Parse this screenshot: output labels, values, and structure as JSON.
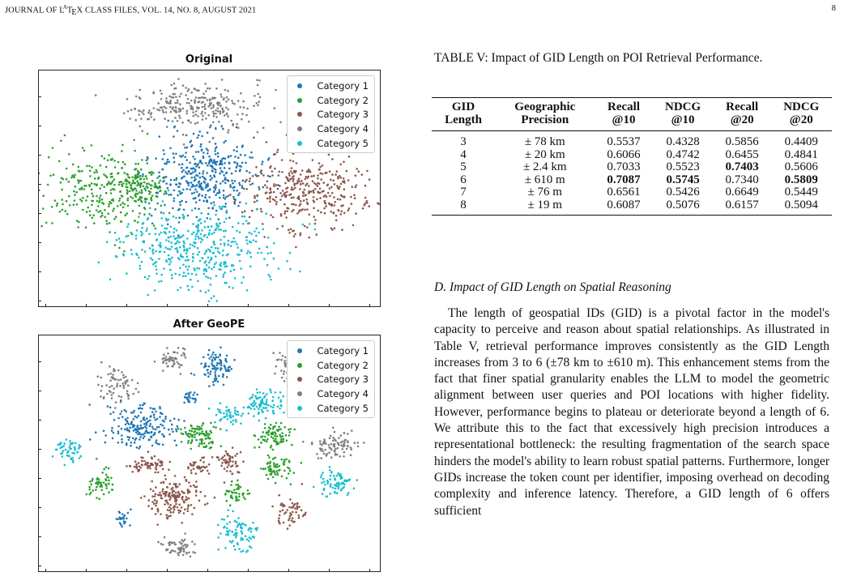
{
  "header": {
    "journal": "JOURNAL OF LaTeX CLASS FILES, VOL. 14, NO. 8, AUGUST 2021",
    "page": "8"
  },
  "figure": {
    "panels": [
      {
        "title": "Original"
      },
      {
        "title": "After GeoPE"
      }
    ],
    "legend": [
      {
        "label": "Category 1",
        "color": "#1f77b4"
      },
      {
        "label": "Category 2",
        "color": "#2ca02c"
      },
      {
        "label": "Category 3",
        "color": "#8c564b"
      },
      {
        "label": "Category 4",
        "color": "#7f7f7f"
      },
      {
        "label": "Category 5",
        "color": "#17becf"
      }
    ]
  },
  "chart_data": [
    {
      "type": "scatter",
      "title": "Original",
      "series": [
        {
          "name": "Category 1"
        },
        {
          "name": "Category 2"
        },
        {
          "name": "Category 3"
        },
        {
          "name": "Category 4"
        },
        {
          "name": "Category 5"
        }
      ],
      "legend": "top-right"
    },
    {
      "type": "scatter",
      "title": "After GeoPE",
      "series": [
        {
          "name": "Category 1"
        },
        {
          "name": "Category 2"
        },
        {
          "name": "Category 3"
        },
        {
          "name": "Category 4"
        },
        {
          "name": "Category 5"
        }
      ],
      "legend": "top-right"
    }
  ],
  "table": {
    "caption": "TABLE V: Impact of GID Length on POI Retrieval Performance.",
    "headers": [
      [
        "GID",
        "Length"
      ],
      [
        "Geographic",
        "Precision"
      ],
      [
        "Recall",
        "@10"
      ],
      [
        "NDCG",
        "@10"
      ],
      [
        "Recall",
        "@20"
      ],
      [
        "NDCG",
        "@20"
      ]
    ],
    "rows": [
      [
        "3",
        "± 78 km",
        "0.5537",
        "0.4328",
        "0.5856",
        "0.4409"
      ],
      [
        "4",
        "± 20 km",
        "0.6066",
        "0.4742",
        "0.6455",
        "0.4841"
      ],
      [
        "5",
        "± 2.4 km",
        "0.7033",
        "0.5523",
        "0.7403",
        "0.5606"
      ],
      [
        "6",
        "± 610 m",
        "0.7087",
        "0.5745",
        "0.7340",
        "0.5809"
      ],
      [
        "7",
        "± 76 m",
        "0.6561",
        "0.5426",
        "0.6649",
        "0.5449"
      ],
      [
        "8",
        "± 19 m",
        "0.6087",
        "0.5076",
        "0.6157",
        "0.5094"
      ]
    ],
    "bold_cells": [
      [
        2,
        4
      ],
      [
        3,
        2
      ],
      [
        3,
        3
      ],
      [
        3,
        5
      ]
    ]
  },
  "section": {
    "heading": "D. Impact of GID Length on Spatial Reasoning",
    "paragraph": "The length of geospatial IDs (GID) is a pivotal factor in the model's capacity to perceive and reason about spatial relationships. As illustrated in Table V, retrieval performance improves consistently as the GID Length increases from 3 to 6 (±78 km to ±610 m). This enhancement stems from the fact that finer spatial granularity enables the LLM to model the geometric alignment between user queries and POI locations with higher fidelity. However, performance begins to plateau or deteriorate beyond a length of 6. We attribute this to the fact that excessively high precision introduces a representational bottleneck: the resulting fragmentation of the search space hinders the model's ability to learn robust spatial patterns. Furthermore, longer GIDs increase the token count per identifier, imposing overhead on decoding complexity and inference latency. Therefore, a GID length of 6 offers sufficient"
  }
}
